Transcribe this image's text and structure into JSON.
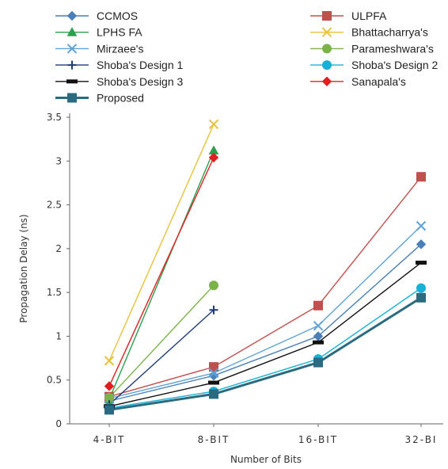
{
  "chart_data": {
    "type": "line",
    "title": "",
    "xlabel": "Number of Bits",
    "ylabel": "Propagation Delay (ns)",
    "categories": [
      "4-BIT",
      "8-BIT",
      "16-BIT",
      "32-BI"
    ],
    "ylim": [
      0,
      3.5
    ],
    "yticks": [
      "0",
      "0.5",
      "1",
      "1.5",
      "2",
      "2.5",
      "3",
      "3.5"
    ],
    "grid": false,
    "legend_position": "top",
    "series": [
      {
        "name": "CCMOS",
        "values": [
          0.26,
          0.55,
          1.0,
          2.05
        ],
        "color": "#4a7fb8",
        "marker": "diamond"
      },
      {
        "name": "ULPFA",
        "values": [
          0.31,
          0.65,
          1.35,
          2.82
        ],
        "color": "#c0504d",
        "marker": "square"
      },
      {
        "name": "LPHS FA",
        "values": [
          0.28,
          3.12,
          null,
          null
        ],
        "color": "#2e9e4f",
        "marker": "triangle"
      },
      {
        "name": "Bhattacharrya's",
        "values": [
          0.72,
          3.42,
          null,
          null
        ],
        "color": "#e8c23c",
        "marker": "x"
      },
      {
        "name": "Mirzaee's",
        "values": [
          0.29,
          0.58,
          1.12,
          2.26
        ],
        "color": "#5fa3d6",
        "marker": "x"
      },
      {
        "name": "Parameshwara's",
        "values": [
          0.3,
          1.58,
          null,
          null
        ],
        "color": "#7bb34a",
        "marker": "circle"
      },
      {
        "name": "Shoba's Design 1",
        "values": [
          0.22,
          1.3,
          null,
          null
        ],
        "color": "#1f3d7a",
        "marker": "plus"
      },
      {
        "name": "Shoba's Design 2",
        "values": [
          0.18,
          0.37,
          0.74,
          1.55
        ],
        "color": "#17b0d6",
        "marker": "circle"
      },
      {
        "name": "Shoba's Design 3",
        "values": [
          0.2,
          0.47,
          0.93,
          1.84
        ],
        "color": "#111111",
        "marker": "dash"
      },
      {
        "name": "Sanapala's",
        "values": [
          0.43,
          3.04,
          null,
          null
        ],
        "color": "#e02020",
        "marker": "diamond"
      },
      {
        "name": "Proposed",
        "values": [
          0.16,
          0.34,
          0.7,
          1.44
        ],
        "color": "#2a6b7f",
        "marker": "square"
      }
    ]
  }
}
